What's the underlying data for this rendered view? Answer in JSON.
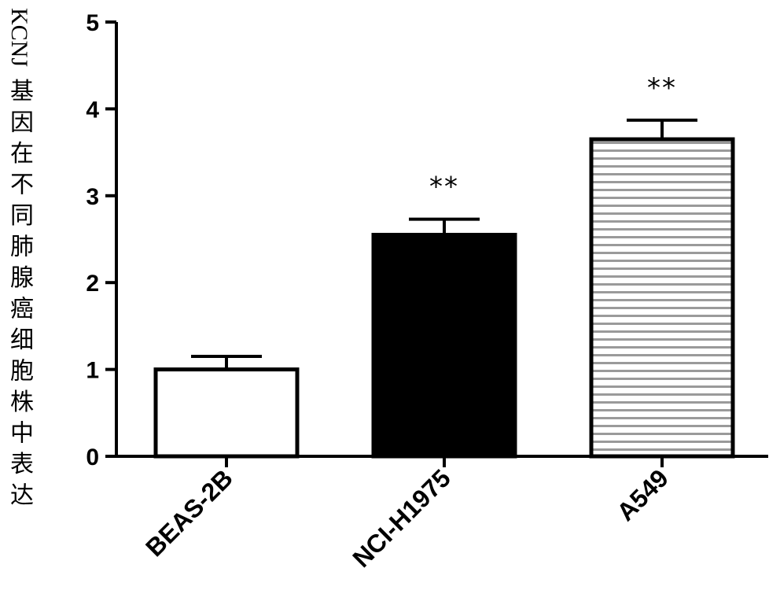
{
  "chart_data": {
    "type": "bar",
    "title": "",
    "ylabel_latin": "KCNJ",
    "ylabel_cjk": "基因在不同肺腺癌细胞株中表达",
    "xlabel": "",
    "ylim": [
      0,
      5
    ],
    "yticks": [
      0,
      1,
      2,
      3,
      4,
      5
    ],
    "categories": [
      "BEAS-2B",
      "NCI-H1975",
      "A549"
    ],
    "values": [
      1.0,
      2.55,
      3.65
    ],
    "errors": [
      0.15,
      0.18,
      0.22
    ],
    "significance": [
      "",
      "**",
      "**"
    ],
    "fills": [
      "white",
      "black",
      "horizontal-stripes"
    ],
    "grid": false,
    "legend": "none"
  }
}
